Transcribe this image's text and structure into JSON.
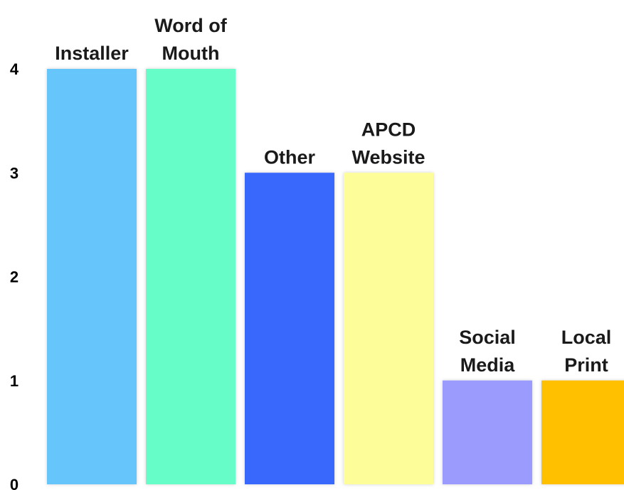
{
  "chart_data": {
    "type": "bar",
    "title": "",
    "xlabel": "",
    "ylabel": "",
    "ylim": [
      0,
      4
    ],
    "y_ticks": [
      0,
      1,
      2,
      3,
      4
    ],
    "grid": false,
    "legend": "none",
    "categories": [
      {
        "label_lines": [
          "Installer"
        ],
        "value": 4,
        "color": "#66c5fb"
      },
      {
        "label_lines": [
          "Word of",
          "Mouth"
        ],
        "value": 4,
        "color": "#66fdc8"
      },
      {
        "label_lines": [
          "Other"
        ],
        "value": 3,
        "color": "#3867fc"
      },
      {
        "label_lines": [
          "APCD",
          "Website"
        ],
        "value": 3,
        "color": "#fdfd9a"
      },
      {
        "label_lines": [
          "Social",
          "Media"
        ],
        "value": 1,
        "color": "#9b9bfd"
      },
      {
        "label_lines": [
          "Local",
          "Print"
        ],
        "value": 1,
        "color": "#ffc000"
      }
    ]
  }
}
